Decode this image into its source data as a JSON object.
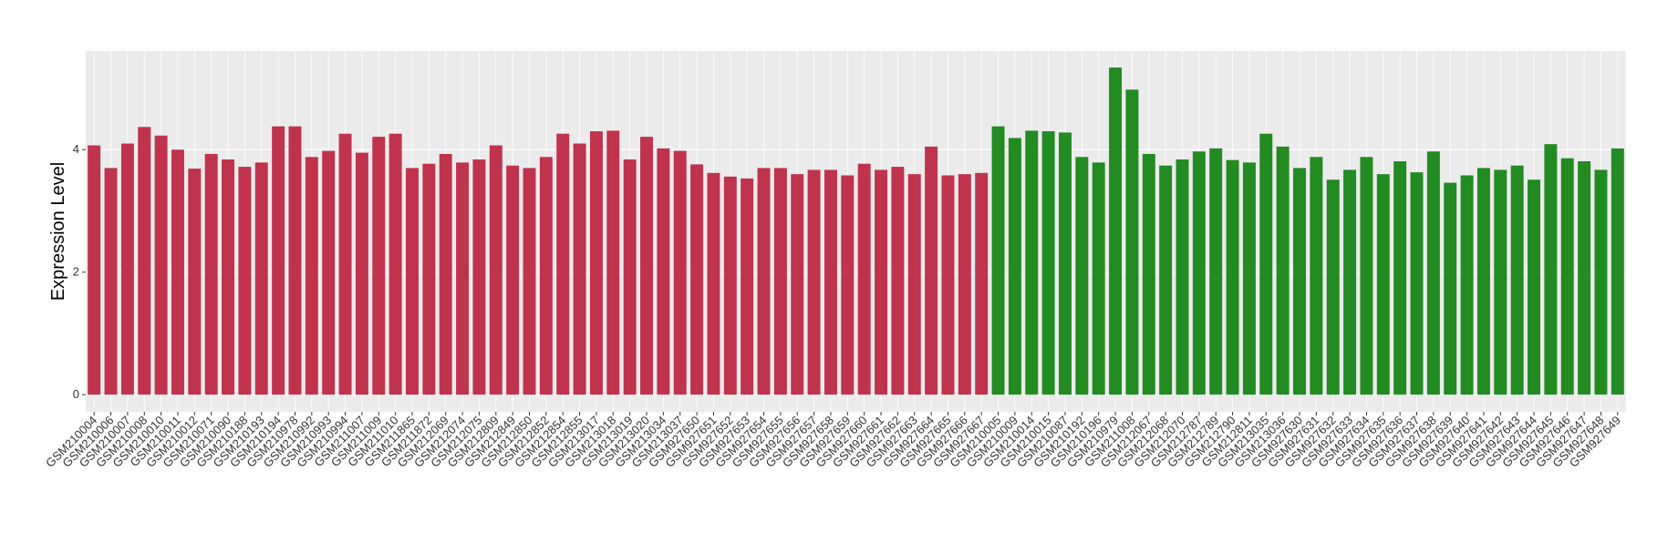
{
  "chart_data": {
    "type": "bar",
    "y_label": "Expression Level",
    "categories": [
      "GSM210004",
      "GSM210006",
      "GSM210007",
      "GSM210008",
      "GSM210010",
      "GSM210011",
      "GSM210012",
      "GSM210071",
      "GSM210090",
      "GSM210188",
      "GSM210193",
      "GSM210194",
      "GSM210978",
      "GSM210992",
      "GSM210993",
      "GSM210994",
      "GSM211007",
      "GSM211009",
      "GSM211010",
      "GSM211865",
      "GSM211872",
      "GSM212069",
      "GSM212074",
      "GSM212075",
      "GSM212809",
      "GSM212849",
      "GSM212850",
      "GSM212852",
      "GSM212854",
      "GSM212855",
      "GSM213017",
      "GSM213018",
      "GSM213019",
      "GSM213020",
      "GSM213034",
      "GSM213037",
      "GSM927650",
      "GSM927651",
      "GSM927652",
      "GSM927653",
      "GSM927654",
      "GSM927655",
      "GSM927656",
      "GSM927657",
      "GSM927658",
      "GSM927659",
      "GSM927660",
      "GSM927661",
      "GSM927662",
      "GSM927663",
      "GSM927664",
      "GSM927665",
      "GSM927666",
      "GSM927667",
      "GSM210005",
      "GSM210009",
      "GSM210014",
      "GSM210015",
      "GSM210087",
      "GSM210192",
      "GSM210196",
      "GSM210979",
      "GSM211008",
      "GSM212067",
      "GSM212068",
      "GSM212070",
      "GSM212787",
      "GSM212789",
      "GSM212790",
      "GSM212811",
      "GSM213035",
      "GSM213036",
      "GSM927630",
      "GSM927631",
      "GSM927632",
      "GSM927633",
      "GSM927634",
      "GSM927635",
      "GSM927636",
      "GSM927637",
      "GSM927638",
      "GSM927639",
      "GSM927640",
      "GSM927641",
      "GSM927642",
      "GSM927643",
      "GSM927644",
      "GSM927645",
      "GSM927646",
      "GSM927647",
      "GSM927648",
      "GSM927649"
    ],
    "series": [
      {
        "color": "#c0334d",
        "values": [
          4.07,
          3.7,
          4.1,
          4.37,
          4.23,
          4.0,
          3.69,
          3.93,
          3.84,
          3.72,
          3.79,
          4.38,
          4.38,
          3.88,
          3.98,
          4.26,
          3.95,
          4.21,
          4.26,
          3.7,
          3.77,
          3.93,
          3.79,
          3.84,
          4.07,
          3.74,
          3.7,
          3.88,
          4.26,
          4.1,
          4.3,
          4.31,
          3.84,
          4.21,
          4.02,
          3.98,
          3.76,
          3.62,
          3.56,
          3.53,
          3.7,
          3.7,
          3.6,
          3.67,
          3.67,
          3.58,
          3.77,
          3.67,
          3.72,
          3.6,
          4.05,
          3.58,
          3.6,
          3.62,
          null,
          null,
          null,
          null,
          null,
          null,
          null,
          null,
          null,
          null,
          null,
          null,
          null,
          null,
          null,
          null,
          null,
          null,
          null,
          null,
          null,
          null,
          null,
          null,
          null,
          null,
          null,
          null,
          null,
          null,
          null,
          null,
          null,
          null,
          null,
          null,
          null,
          null
        ]
      },
      {
        "color": "#228b22",
        "values": [
          null,
          null,
          null,
          null,
          null,
          null,
          null,
          null,
          null,
          null,
          null,
          null,
          null,
          null,
          null,
          null,
          null,
          null,
          null,
          null,
          null,
          null,
          null,
          null,
          null,
          null,
          null,
          null,
          null,
          null,
          null,
          null,
          null,
          null,
          null,
          null,
          null,
          null,
          null,
          null,
          null,
          null,
          null,
          null,
          null,
          null,
          null,
          null,
          null,
          null,
          null,
          null,
          null,
          null,
          4.38,
          4.19,
          4.31,
          4.3,
          4.28,
          3.88,
          3.79,
          5.34,
          4.98,
          3.93,
          3.74,
          3.84,
          3.97,
          4.02,
          3.83,
          3.79,
          4.26,
          4.05,
          3.7,
          3.88,
          3.51,
          3.67,
          3.88,
          3.6,
          3.81,
          3.63,
          3.97,
          3.46,
          3.58,
          3.7,
          3.67,
          3.74,
          3.51,
          4.09,
          3.86,
          3.81,
          3.67,
          4.02
        ]
      }
    ],
    "ylim": [
      -0.28,
      5.61
    ],
    "yticks": [
      0,
      2,
      4
    ],
    "grid": true
  }
}
